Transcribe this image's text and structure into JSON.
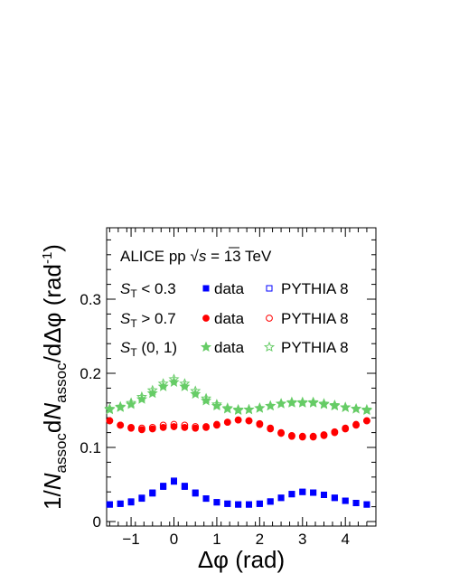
{
  "chart_data": {
    "type": "scatter",
    "xlabel": "Δφ (rad)",
    "ylabel_parts": {
      "prefix": "1/",
      "n1": "N",
      "sub1": "assoc",
      "mid": "d",
      "n2": "N",
      "sub2": "assoc",
      "slash": "/dΔφ (rad",
      "sup": "-1",
      "close": ")"
    },
    "xlim": [
      -1.5708,
      4.7124
    ],
    "ylim": [
      0,
      0.39
    ],
    "xticks": [
      -1,
      0,
      1,
      2,
      3,
      4
    ],
    "xtick_labels": [
      "−1",
      "0",
      "1",
      "2",
      "3",
      "4"
    ],
    "yticks": [
      0,
      0.1,
      0.2,
      0.3
    ],
    "ytick_labels": [
      "0",
      "0.1",
      "0.2",
      "0.3"
    ],
    "legend": {
      "header": {
        "prefix": "ALICE  pp  ",
        "sqrt": "s",
        "suffix": " = 13 TeV"
      },
      "rows": [
        {
          "label_main": "S",
          "label_sub": "T",
          "label_rest": " < 0.3",
          "data_label": "data",
          "mc_label": "PYTHIA 8",
          "color": "#0000ff",
          "marker": "square"
        },
        {
          "label_main": "S",
          "label_sub": "T",
          "label_rest": " > 0.7",
          "data_label": "data",
          "mc_label": "PYTHIA 8",
          "color": "#ff0000",
          "marker": "circle"
        },
        {
          "label_main": "S",
          "label_sub": "T",
          "label_rest": " (0, 1)",
          "data_label": "data",
          "mc_label": "PYTHIA 8",
          "color": "#66cc66",
          "marker": "star"
        }
      ]
    },
    "series": [
      {
        "name": "S_T < 0.3 data",
        "color": "#0000ff",
        "marker": "square",
        "filled": true,
        "x": [
          -1.5,
          -1.25,
          -1.0,
          -0.75,
          -0.5,
          -0.25,
          0.0,
          0.25,
          0.5,
          0.75,
          1.0,
          1.25,
          1.5,
          1.75,
          2.0,
          2.25,
          2.5,
          2.75,
          3.0,
          3.25,
          3.5,
          3.75,
          4.0,
          4.25,
          4.5
        ],
        "y": [
          0.023,
          0.024,
          0.026,
          0.031,
          0.038,
          0.047,
          0.054,
          0.047,
          0.038,
          0.031,
          0.026,
          0.024,
          0.023,
          0.023,
          0.024,
          0.027,
          0.032,
          0.037,
          0.04,
          0.039,
          0.036,
          0.032,
          0.028,
          0.025,
          0.023
        ]
      },
      {
        "name": "S_T < 0.3 PYTHIA 8",
        "color": "#0000ff",
        "marker": "square",
        "filled": false,
        "x": [
          -1.5,
          -1.25,
          -1.0,
          -0.75,
          -0.5,
          -0.25,
          0.0,
          0.25,
          0.5,
          0.75,
          1.0,
          1.25,
          1.5,
          1.75,
          2.0,
          2.25,
          2.5,
          2.75,
          3.0,
          3.25,
          3.5,
          3.75,
          4.0,
          4.25,
          4.5
        ],
        "y": [
          0.023,
          0.024,
          0.027,
          0.032,
          0.039,
          0.048,
          0.055,
          0.048,
          0.039,
          0.031,
          0.026,
          0.024,
          0.023,
          0.023,
          0.024,
          0.027,
          0.032,
          0.037,
          0.04,
          0.039,
          0.036,
          0.032,
          0.028,
          0.025,
          0.023
        ]
      },
      {
        "name": "S_T > 0.7 data",
        "color": "#ff0000",
        "marker": "circle",
        "filled": true,
        "x": [
          -1.5,
          -1.25,
          -1.0,
          -0.75,
          -0.5,
          -0.25,
          0.0,
          0.25,
          0.5,
          0.75,
          1.0,
          1.25,
          1.5,
          1.75,
          2.0,
          2.25,
          2.5,
          2.75,
          3.0,
          3.25,
          3.5,
          3.75,
          4.0,
          4.25,
          4.5
        ],
        "y": [
          0.136,
          0.13,
          0.126,
          0.124,
          0.125,
          0.127,
          0.128,
          0.127,
          0.126,
          0.127,
          0.13,
          0.134,
          0.137,
          0.136,
          0.132,
          0.126,
          0.12,
          0.116,
          0.115,
          0.115,
          0.117,
          0.121,
          0.126,
          0.131,
          0.136
        ]
      },
      {
        "name": "S_T > 0.7 PYTHIA 8",
        "color": "#ff0000",
        "marker": "circle",
        "filled": false,
        "x": [
          -1.5,
          -1.25,
          -1.0,
          -0.75,
          -0.5,
          -0.25,
          0.0,
          0.25,
          0.5,
          0.75,
          1.0,
          1.25,
          1.5,
          1.75,
          2.0,
          2.25,
          2.5,
          2.75,
          3.0,
          3.25,
          3.5,
          3.75,
          4.0,
          4.25,
          4.5
        ],
        "y": [
          0.136,
          0.13,
          0.127,
          0.126,
          0.127,
          0.13,
          0.131,
          0.13,
          0.128,
          0.128,
          0.131,
          0.134,
          0.137,
          0.136,
          0.131,
          0.125,
          0.119,
          0.115,
          0.114,
          0.114,
          0.116,
          0.12,
          0.125,
          0.13,
          0.136
        ]
      },
      {
        "name": "S_T (0, 1) data",
        "color": "#66cc66",
        "marker": "star",
        "filled": true,
        "x": [
          -1.5,
          -1.25,
          -1.0,
          -0.75,
          -0.5,
          -0.25,
          0.0,
          0.25,
          0.5,
          0.75,
          1.0,
          1.25,
          1.5,
          1.75,
          2.0,
          2.25,
          2.5,
          2.75,
          3.0,
          3.25,
          3.5,
          3.75,
          4.0,
          4.25,
          4.5
        ],
        "y": [
          0.151,
          0.154,
          0.158,
          0.165,
          0.173,
          0.182,
          0.188,
          0.182,
          0.172,
          0.163,
          0.156,
          0.152,
          0.15,
          0.151,
          0.153,
          0.156,
          0.159,
          0.16,
          0.16,
          0.16,
          0.158,
          0.156,
          0.154,
          0.152,
          0.15
        ]
      },
      {
        "name": "S_T (0, 1) PYTHIA 8",
        "color": "#66cc66",
        "marker": "star",
        "filled": false,
        "x": [
          -1.5,
          -1.25,
          -1.0,
          -0.75,
          -0.5,
          -0.25,
          0.0,
          0.25,
          0.5,
          0.75,
          1.0,
          1.25,
          1.5,
          1.75,
          2.0,
          2.25,
          2.5,
          2.75,
          3.0,
          3.25,
          3.5,
          3.75,
          4.0,
          4.25,
          4.5
        ],
        "y": [
          0.152,
          0.155,
          0.16,
          0.168,
          0.177,
          0.186,
          0.192,
          0.186,
          0.176,
          0.166,
          0.158,
          0.153,
          0.151,
          0.151,
          0.153,
          0.156,
          0.159,
          0.161,
          0.161,
          0.161,
          0.159,
          0.157,
          0.154,
          0.152,
          0.151
        ]
      }
    ]
  }
}
